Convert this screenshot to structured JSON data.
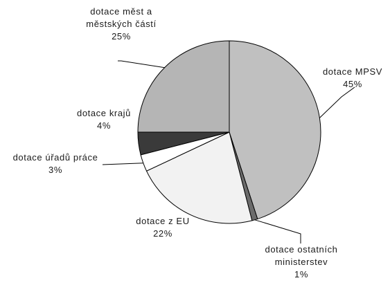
{
  "chart_data": {
    "type": "pie",
    "title": "",
    "legend": "none",
    "start_angle_deg": 0,
    "direction": "clockwise",
    "slices": [
      {
        "label_lines": [
          "dotace MPSV"
        ],
        "value": 45,
        "value_label": "45%",
        "color": "#c0c0c0"
      },
      {
        "label_lines": [
          "dotace ostatních",
          "ministerstev"
        ],
        "value": 1,
        "value_label": "1%",
        "color": "#6b6b6b"
      },
      {
        "label_lines": [
          "dotace z EU"
        ],
        "value": 22,
        "value_label": "22%",
        "color": "#f2f2f2"
      },
      {
        "label_lines": [
          "dotace úřadů práce"
        ],
        "value": 3,
        "value_label": "3%",
        "color": "#ffffff"
      },
      {
        "label_lines": [
          "dotace krajů"
        ],
        "value": 4,
        "value_label": "4%",
        "color": "#3a3a3a"
      },
      {
        "label_lines": [
          "dotace měst a",
          "městských částí"
        ],
        "value": 25,
        "value_label": "25%",
        "color": "#b5b5b5"
      }
    ]
  }
}
